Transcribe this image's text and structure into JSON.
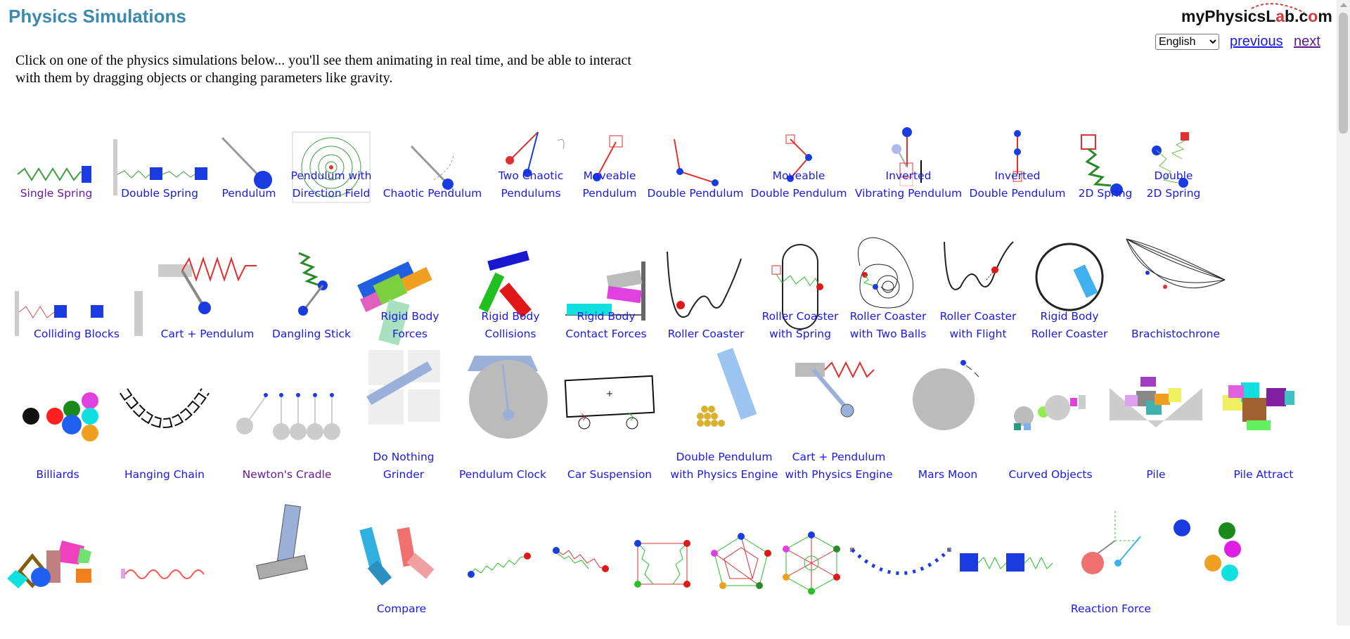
{
  "page": {
    "title": "Physics Simulations",
    "logo": {
      "part1": "myPhysicsL",
      "accent": "a",
      "part2": "b.c",
      "accent2": "o",
      "part3": "m"
    },
    "language": {
      "selected": "English",
      "options": [
        "English"
      ]
    },
    "nav": {
      "previous": "previous",
      "next": "next"
    },
    "intro_line1": "Click on one of the physics simulations below... you'll see them animating in real time, and be able to interact",
    "intro_line2": "with them by dragging objects or changing parameters like gravity."
  },
  "rows": [
    [
      {
        "l1": "Single Spring",
        "visited": true,
        "icon": "single-spring-icon"
      },
      {
        "l1": "Double Spring",
        "icon": "double-spring-icon"
      },
      {
        "l1": "Pendulum",
        "icon": "pendulum-icon"
      },
      {
        "l1": "Pendulum with",
        "l2": "Direction Field",
        "icon": "direction-field-icon"
      },
      {
        "l1": "Chaotic Pendulum",
        "icon": "chaotic-pendulum-icon"
      },
      {
        "l1": "Two Chaotic",
        "l2": "Pendulums",
        "icon": "two-chaotic-pendulums-icon"
      },
      {
        "l1": "Moveable",
        "l2": "Pendulum",
        "icon": "moveable-pendulum-icon"
      },
      {
        "l1": "Double Pendulum",
        "icon": "double-pendulum-icon"
      },
      {
        "l1": "Moveable",
        "l2": "Double Pendulum",
        "icon": "moveable-double-pendulum-icon"
      },
      {
        "l1": "Inverted",
        "l2": "Vibrating Pendulum",
        "icon": "inverted-vibrating-pendulum-icon"
      },
      {
        "l1": "Inverted",
        "l2": "Double Pendulum",
        "icon": "inverted-double-pendulum-icon"
      },
      {
        "l1": "2D Spring",
        "icon": "2d-spring-icon"
      },
      {
        "l1": "Double",
        "l2": "2D Spring",
        "icon": "double-2d-spring-icon"
      }
    ],
    [
      {
        "l1": "Colliding Blocks",
        "icon": "colliding-blocks-icon"
      },
      {
        "l1": "Cart + Pendulum",
        "icon": "cart-pendulum-icon"
      },
      {
        "l1": "Dangling Stick",
        "icon": "dangling-stick-icon"
      },
      {
        "l1": "Rigid Body",
        "l2": "Forces",
        "icon": "rigid-body-forces-icon"
      },
      {
        "l1": "Rigid Body",
        "l2": "Collisions",
        "icon": "rigid-body-collisions-icon"
      },
      {
        "l1": "Rigid Body",
        "l2": "Contact Forces",
        "icon": "rigid-body-contact-icon"
      },
      {
        "l1": "Roller Coaster",
        "icon": "roller-coaster-icon"
      },
      {
        "l1": "Roller Coaster",
        "l2": "with Spring",
        "icon": "roller-coaster-spring-icon"
      },
      {
        "l1": "Roller Coaster",
        "l2": "with Two Balls",
        "icon": "roller-coaster-two-balls-icon"
      },
      {
        "l1": "Roller Coaster",
        "l2": "with Flight",
        "icon": "roller-coaster-flight-icon"
      },
      {
        "l1": "Rigid Body",
        "l2": "Roller Coaster",
        "icon": "rigid-body-roller-coaster-icon"
      },
      {
        "l1": "Brachistochrone",
        "icon": "brachistochrone-icon"
      }
    ],
    [
      {
        "l1": "Billiards",
        "icon": "billiards-icon"
      },
      {
        "l1": "Hanging Chain",
        "icon": "hanging-chain-icon"
      },
      {
        "l1": "Newton's Cradle",
        "visited": true,
        "icon": "newtons-cradle-icon"
      },
      {
        "l1": "Do Nothing",
        "l2": "Grinder",
        "icon": "grinder-icon"
      },
      {
        "l1": "Pendulum Clock",
        "icon": "pendulum-clock-icon"
      },
      {
        "l1": "Car Suspension",
        "icon": "car-suspension-icon"
      },
      {
        "l1": "Double Pendulum",
        "l2": "with Physics Engine",
        "icon": "double-pendulum-engine-icon"
      },
      {
        "l1": "Cart + Pendulum",
        "l2": "with Physics Engine",
        "icon": "cart-pendulum-engine-icon"
      },
      {
        "l1": "Mars Moon",
        "icon": "mars-moon-icon"
      },
      {
        "l1": "Curved Objects",
        "icon": "curved-objects-icon"
      },
      {
        "l1": "Pile",
        "icon": "pile-icon"
      },
      {
        "l1": "Pile Attract",
        "icon": "pile-attract-icon"
      }
    ],
    [
      {
        "l1": "",
        "icon": "polygon-blocks-icon"
      },
      {
        "l1": "",
        "icon": "wave-spring-icon"
      },
      {
        "l1": "",
        "icon": "stacked-blocks-icon"
      },
      {
        "l1": "Compare",
        "icon": "compare-icon"
      },
      {
        "l1": "",
        "icon": "chain-1-icon"
      },
      {
        "l1": "",
        "icon": "chain-2-icon"
      },
      {
        "l1": "",
        "icon": "spring-square-icon"
      },
      {
        "l1": "",
        "icon": "spring-pentagon-icon"
      },
      {
        "l1": "",
        "icon": "spring-hexagon-icon"
      },
      {
        "l1": "",
        "icon": "bead-chain-icon"
      },
      {
        "l1": "",
        "icon": "two-blocks-spring-icon"
      },
      {
        "l1": "Reaction Force",
        "icon": "reaction-force-icon"
      },
      {
        "l1": "",
        "icon": "colored-balls-icon"
      }
    ]
  ]
}
